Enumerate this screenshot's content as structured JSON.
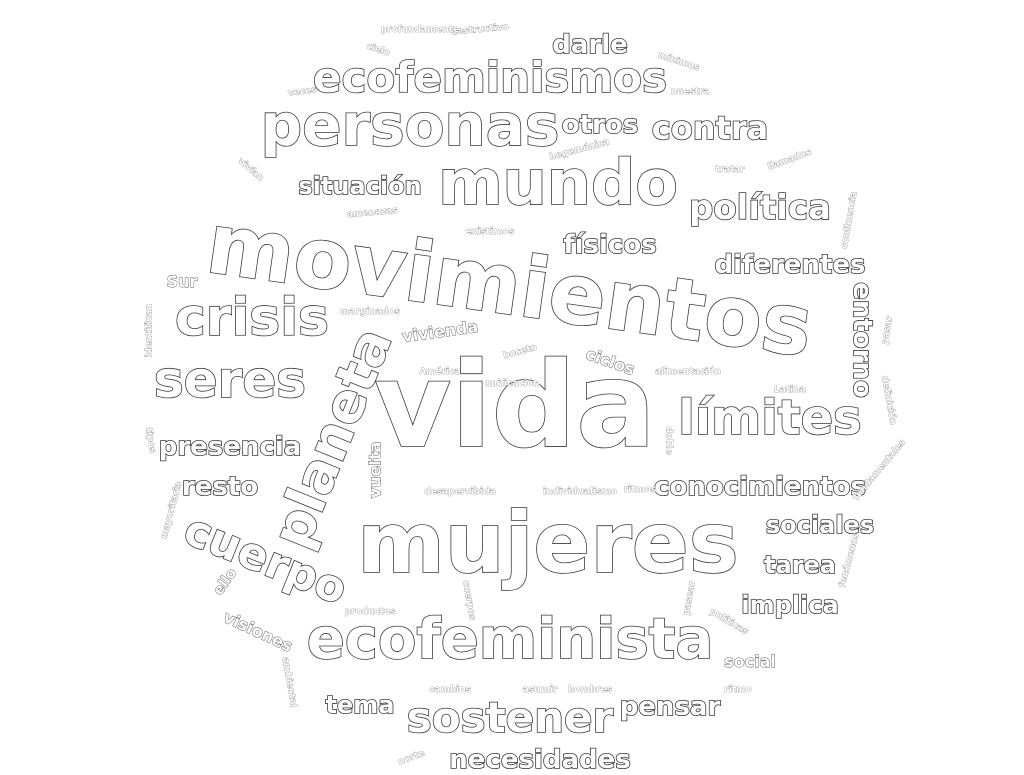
{
  "words": [
    {
      "text": "vida",
      "size": 118
    },
    {
      "text": "movimientos",
      "size": 84
    },
    {
      "text": "mujeres",
      "size": 84
    },
    {
      "text": "mundo",
      "size": 62
    },
    {
      "text": "personas",
      "size": 58
    },
    {
      "text": "ecofeminista",
      "size": 56
    },
    {
      "text": "planeta",
      "size": 54
    },
    {
      "text": "crisis",
      "size": 52
    },
    {
      "text": "seres",
      "size": 50
    },
    {
      "text": "límites",
      "size": 48
    },
    {
      "text": "cuerpo",
      "size": 44
    },
    {
      "text": "ecofeminismos",
      "size": 42
    },
    {
      "text": "sostener",
      "size": 42
    },
    {
      "text": "política",
      "size": 34
    },
    {
      "text": "contra",
      "size": 32
    },
    {
      "text": "entorno",
      "size": 26
    },
    {
      "text": "diferentes",
      "size": 26
    },
    {
      "text": "conocimientos",
      "size": 26
    },
    {
      "text": "otros",
      "size": 26
    },
    {
      "text": "darle",
      "size": 26
    },
    {
      "text": "físicos",
      "size": 26
    },
    {
      "text": "situación",
      "size": 24
    },
    {
      "text": "presencia",
      "size": 26
    },
    {
      "text": "resto",
      "size": 26
    },
    {
      "text": "sociales",
      "size": 24
    },
    {
      "text": "tarea",
      "size": 24
    },
    {
      "text": "implica",
      "size": 24
    },
    {
      "text": "pensar",
      "size": 26
    },
    {
      "text": "tema",
      "size": 24
    },
    {
      "text": "necesidades",
      "size": 26
    },
    {
      "text": "vuelta",
      "size": 16
    },
    {
      "text": "vivienda",
      "size": 16
    },
    {
      "text": "visiones",
      "size": 16
    },
    {
      "text": "social",
      "size": 16
    },
    {
      "text": "ciclos",
      "size": 16
    },
    {
      "text": "Sur",
      "size": 16
    },
    {
      "text": "ello",
      "size": 14
    },
    {
      "text": "boceto",
      "size": 9
    },
    {
      "text": "América",
      "size": 9
    },
    {
      "text": "alimentación",
      "size": 9
    },
    {
      "text": "Latina",
      "size": 9
    },
    {
      "text": "ritmos",
      "size": 9
    },
    {
      "text": "individualismo",
      "size": 9
    },
    {
      "text": "desapercibida",
      "size": 9
    },
    {
      "text": "productos",
      "size": 9
    },
    {
      "text": "cambios",
      "size": 9
    },
    {
      "text": "asumir",
      "size": 9
    },
    {
      "text": "hombres",
      "size": 9
    },
    {
      "text": "ritmo",
      "size": 9
    },
    {
      "text": "políticas",
      "size": 9
    },
    {
      "text": "pasear",
      "size": 9
    },
    {
      "text": "cuerpos",
      "size": 9
    },
    {
      "text": "mayoritaria",
      "size": 9
    },
    {
      "text": "tipos",
      "size": 9
    },
    {
      "text": "identifican",
      "size": 9
    },
    {
      "text": "marginados",
      "size": 9
    },
    {
      "text": "amenazas",
      "size": 9
    },
    {
      "text": "existimos",
      "size": 9
    },
    {
      "text": "hegemónica",
      "size": 9
    },
    {
      "text": "tratar",
      "size": 9
    },
    {
      "text": "llamados",
      "size": 9
    },
    {
      "text": "confluencia",
      "size": 9
    },
    {
      "text": "pasar",
      "size": 9
    },
    {
      "text": "definición",
      "size": 9
    },
    {
      "text": "fundamentales",
      "size": 9
    },
    {
      "text": "fenómenos",
      "size": 9
    },
    {
      "text": "doble",
      "size": 9
    },
    {
      "text": "nuestra",
      "size": 9
    },
    {
      "text": "mínimos",
      "size": 9
    },
    {
      "text": "destructivo",
      "size": 9
    },
    {
      "text": "profundamente",
      "size": 9
    },
    {
      "text": "cielo",
      "size": 9
    },
    {
      "text": "veces",
      "size": 9
    },
    {
      "text": "vivían",
      "size": 9
    },
    {
      "text": "ambiental",
      "size": 9
    },
    {
      "text": "norte",
      "size": 9
    },
    {
      "text": "unificación",
      "size": 9
    }
  ]
}
